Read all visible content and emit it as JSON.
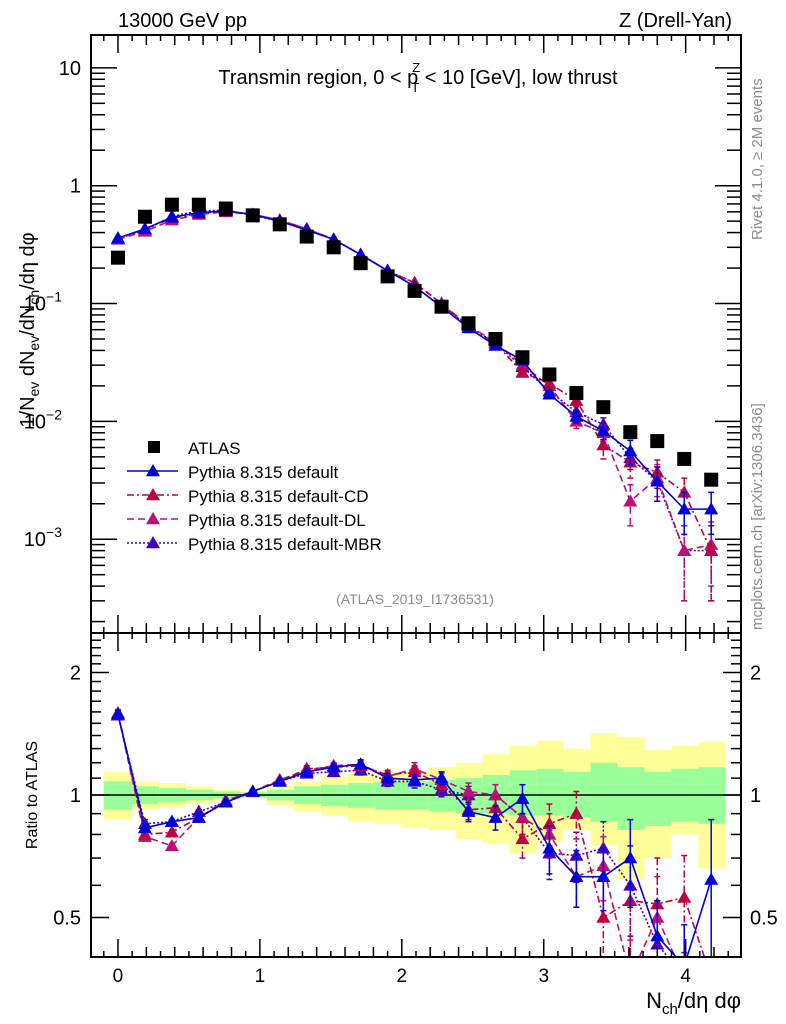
{
  "header": {
    "left": "13000 GeV pp",
    "right": "Z (Drell-Yan)"
  },
  "side_labels": {
    "rivet": "Rivet 4.1.0, ≥ 2M events",
    "mcplots": "mcplots.cern.ch [arXiv:1306.3436]"
  },
  "chart_data": [
    {
      "type": "line",
      "panel": "main",
      "title": "Transmin region, 0 < p_T^Z < 10 [GeV], low thrust",
      "title_parts": {
        "pre": "Transmin region, 0 < p",
        "sup": "Z",
        "sub": "T",
        "post": " < 10 [GeV], low thrust"
      },
      "analysis_tag": "(ATLAS_2019_I1736531)",
      "ylabel": "1/N_ev dN_ev/dN_ch/dη dφ",
      "yscale": "log",
      "ylim": [
        0.00016,
        19
      ],
      "xlim": [
        -0.19,
        4.39
      ],
      "yticks": [
        {
          "value": 10,
          "label": "10"
        },
        {
          "value": 1,
          "label": "1"
        },
        {
          "value": 0.1,
          "label": "10",
          "exp": "−1"
        },
        {
          "value": 0.01,
          "label": "10",
          "exp": "−2"
        },
        {
          "value": 0.001,
          "label": "10",
          "exp": "−3"
        }
      ],
      "legend_position": "lower-left",
      "x": [
        0,
        0.19,
        0.38,
        0.57,
        0.76,
        0.95,
        1.14,
        1.33,
        1.52,
        1.71,
        1.9,
        2.09,
        2.28,
        2.47,
        2.66,
        2.85,
        3.04,
        3.23,
        3.42,
        3.61,
        3.8,
        3.99,
        4.18
      ],
      "series": [
        {
          "name": "ATLAS",
          "style": "data",
          "color": "#000000",
          "values": [
            0.245,
            0.545,
            0.69,
            0.69,
            0.64,
            0.56,
            0.47,
            0.37,
            0.3,
            0.22,
            0.17,
            0.128,
            0.094,
            0.068,
            0.05,
            0.035,
            0.025,
            0.0174,
            0.0132,
            0.0081,
            0.0068,
            0.0048,
            0.0032
          ]
        },
        {
          "name": "Pythia 8.315 default",
          "style": "solid",
          "color": "#0000dd",
          "values": [
            0.36,
            0.43,
            0.54,
            0.59,
            0.61,
            0.57,
            0.5,
            0.42,
            0.35,
            0.26,
            0.19,
            0.14,
            0.094,
            0.062,
            0.044,
            0.033,
            0.017,
            0.011,
            0.0083,
            0.0056,
            0.0031,
            0.0018,
            0.0018
          ],
          "err": [
            0.005,
            0.005,
            0.005,
            0.005,
            0.005,
            0.005,
            0.005,
            0.004,
            0.004,
            0.003,
            0.002,
            0.002,
            0.0015,
            0.001,
            0.0009,
            0.0008,
            0.0014,
            0.0013,
            0.0013,
            0.0013,
            0.001,
            0.0007,
            0.0007
          ]
        },
        {
          "name": "Pythia 8.315 default-CD",
          "style": "dashdot",
          "color": "#bb0044",
          "values": [
            0.355,
            0.43,
            0.53,
            0.58,
            0.61,
            0.57,
            0.51,
            0.43,
            0.35,
            0.26,
            0.19,
            0.15,
            0.1,
            0.063,
            0.046,
            0.026,
            0.021,
            0.015,
            0.0063,
            0.0045,
            0.0037,
            0.0025,
            0.0008
          ],
          "err": [
            0.005,
            0.005,
            0.005,
            0.005,
            0.005,
            0.005,
            0.005,
            0.004,
            0.004,
            0.003,
            0.002,
            0.002,
            0.0015,
            0.001,
            0.001,
            0.001,
            0.0015,
            0.0015,
            0.0015,
            0.0012,
            0.001,
            0.0008,
            0.0005
          ]
        },
        {
          "name": "Pythia 8.315 default-DL",
          "style": "dashed",
          "color": "#bb1177",
          "values": [
            0.35,
            0.41,
            0.51,
            0.57,
            0.6,
            0.57,
            0.51,
            0.43,
            0.35,
            0.26,
            0.19,
            0.15,
            0.1,
            0.065,
            0.047,
            0.03,
            0.02,
            0.01,
            0.008,
            0.0021,
            0.0033,
            0.0008,
            0.0009
          ],
          "err": [
            0.005,
            0.005,
            0.005,
            0.005,
            0.005,
            0.005,
            0.005,
            0.004,
            0.004,
            0.003,
            0.002,
            0.002,
            0.0015,
            0.001,
            0.001,
            0.001,
            0.0015,
            0.0013,
            0.0013,
            0.0008,
            0.001,
            0.0005,
            0.0005
          ]
        },
        {
          "name": "Pythia 8.315 default-MBR",
          "style": "dotted",
          "color": "#4400bb",
          "values": [
            0.355,
            0.42,
            0.55,
            0.61,
            0.62,
            0.56,
            0.5,
            0.43,
            0.35,
            0.26,
            0.19,
            0.14,
            0.093,
            0.065,
            0.046,
            0.029,
            0.018,
            0.012,
            0.0094,
            0.0049,
            0.0031,
            0.0008,
            0.0008
          ],
          "err": [
            0.005,
            0.005,
            0.005,
            0.005,
            0.005,
            0.005,
            0.005,
            0.004,
            0.004,
            0.003,
            0.002,
            0.002,
            0.0015,
            0.001,
            0.001,
            0.001,
            0.0015,
            0.0013,
            0.0013,
            0.001,
            0.001,
            0.0005,
            0.0005
          ]
        }
      ]
    },
    {
      "type": "line",
      "panel": "ratio",
      "ylabel": "Ratio to ATLAS",
      "xlabel": "N_ch/dη dφ",
      "xlabel_parts": {
        "pre": "N",
        "sub": "ch",
        "post": "/dη dφ"
      },
      "yscale": "log",
      "ylim": [
        0.4,
        2.5
      ],
      "xlim": [
        -0.19,
        4.39
      ],
      "yticks": [
        {
          "value": 2,
          "label": "2"
        },
        {
          "value": 1,
          "label": "1"
        },
        {
          "value": 0.5,
          "label": "0.5"
        }
      ],
      "xticks": [
        {
          "value": 0,
          "label": "0"
        },
        {
          "value": 1,
          "label": "1"
        },
        {
          "value": 2,
          "label": "2"
        },
        {
          "value": 3,
          "label": "3"
        },
        {
          "value": 4,
          "label": "4"
        }
      ],
      "bands": {
        "inner_color": "#99ff99",
        "outer_color": "#ffff99",
        "x_edges": [
          -0.1,
          0.1,
          0.29,
          0.48,
          0.67,
          0.86,
          1.05,
          1.24,
          1.43,
          1.62,
          1.81,
          2.0,
          2.19,
          2.38,
          2.57,
          2.76,
          2.95,
          3.14,
          3.33,
          3.52,
          3.71,
          3.9,
          4.09,
          4.28
        ],
        "inner_lo": [
          0.92,
          0.95,
          0.96,
          0.97,
          0.98,
          0.985,
          0.97,
          0.95,
          0.94,
          0.93,
          0.92,
          0.92,
          0.91,
          0.9,
          0.9,
          0.89,
          0.89,
          0.88,
          0.86,
          0.82,
          0.84,
          0.86,
          0.85
        ],
        "inner_hi": [
          1.08,
          1.05,
          1.04,
          1.03,
          1.02,
          1.015,
          1.03,
          1.05,
          1.06,
          1.07,
          1.08,
          1.08,
          1.09,
          1.1,
          1.12,
          1.15,
          1.16,
          1.14,
          1.2,
          1.17,
          1.14,
          1.16,
          1.17
        ],
        "outer_lo": [
          0.87,
          0.92,
          0.93,
          0.95,
          0.97,
          0.98,
          0.94,
          0.91,
          0.89,
          0.86,
          0.85,
          0.83,
          0.82,
          0.78,
          0.76,
          0.72,
          0.77,
          0.82,
          0.75,
          0.62,
          0.7,
          0.8,
          0.66
        ],
        "outer_hi": [
          1.14,
          1.08,
          1.07,
          1.05,
          1.03,
          1.02,
          1.06,
          1.08,
          1.11,
          1.13,
          1.14,
          1.14,
          1.17,
          1.2,
          1.26,
          1.32,
          1.36,
          1.3,
          1.42,
          1.39,
          1.29,
          1.32,
          1.35
        ]
      },
      "x": [
        0,
        0.19,
        0.38,
        0.57,
        0.76,
        0.95,
        1.14,
        1.33,
        1.52,
        1.71,
        1.9,
        2.09,
        2.28,
        2.47,
        2.66,
        2.85,
        3.04,
        3.23,
        3.42,
        3.61,
        3.8,
        3.99,
        4.18
      ],
      "series": [
        {
          "name": "Pythia 8.315 default",
          "style": "solid",
          "color": "#0000dd",
          "values": [
            1.58,
            0.83,
            0.86,
            0.88,
            0.96,
            1.02,
            1.08,
            1.14,
            1.17,
            1.19,
            1.1,
            1.09,
            1.1,
            0.91,
            0.88,
            0.98,
            0.74,
            0.63,
            0.63,
            0.7,
            0.45,
            0.38,
            0.62
          ],
          "err": [
            0.03,
            0.02,
            0.01,
            0.01,
            0.01,
            0.01,
            0.01,
            0.01,
            0.02,
            0.03,
            0.03,
            0.03,
            0.04,
            0.05,
            0.06,
            0.08,
            0.1,
            0.1,
            0.11,
            0.17,
            0.1,
            0.1,
            0.25
          ]
        },
        {
          "name": "Pythia 8.315 default-CD",
          "style": "dashdot",
          "color": "#bb0044",
          "values": [
            1.59,
            0.8,
            0.81,
            0.88,
            0.96,
            1.02,
            1.08,
            1.16,
            1.17,
            1.18,
            1.12,
            1.14,
            1.06,
            0.92,
            0.93,
            0.78,
            0.85,
            0.9,
            0.5,
            0.55,
            0.54,
            0.56,
            0.28
          ],
          "err": [
            0.03,
            0.02,
            0.01,
            0.01,
            0.01,
            0.01,
            0.01,
            0.02,
            0.02,
            0.03,
            0.03,
            0.04,
            0.04,
            0.05,
            0.06,
            0.08,
            0.1,
            0.12,
            0.15,
            0.15,
            0.16,
            0.15,
            0.1
          ]
        },
        {
          "name": "Pythia 8.315 default-DL",
          "style": "dashed",
          "color": "#bb1177",
          "values": [
            1.58,
            0.79,
            0.75,
            0.88,
            0.97,
            1.02,
            1.09,
            1.15,
            1.18,
            1.19,
            1.11,
            1.16,
            1.09,
            1.02,
            1.0,
            0.88,
            0.8,
            0.63,
            0.67,
            0.34,
            0.5,
            0.23,
            0.27
          ],
          "err": [
            0.03,
            0.02,
            0.01,
            0.01,
            0.01,
            0.01,
            0.01,
            0.02,
            0.02,
            0.03,
            0.03,
            0.04,
            0.04,
            0.05,
            0.06,
            0.08,
            0.1,
            0.1,
            0.12,
            0.1,
            0.13,
            0.1,
            0.1
          ]
        },
        {
          "name": "Pythia 8.315 default-MBR",
          "style": "dotted",
          "color": "#4400bb",
          "values": [
            1.57,
            0.85,
            0.86,
            0.91,
            0.96,
            1.02,
            1.08,
            1.13,
            1.14,
            1.15,
            1.08,
            1.08,
            1.03,
            1.0,
            1.0,
            0.88,
            0.72,
            0.71,
            0.74,
            0.6,
            0.43,
            0.23,
            0.25
          ],
          "err": [
            0.03,
            0.02,
            0.01,
            0.01,
            0.01,
            0.01,
            0.01,
            0.01,
            0.02,
            0.03,
            0.03,
            0.04,
            0.04,
            0.05,
            0.06,
            0.08,
            0.1,
            0.1,
            0.12,
            0.15,
            0.12,
            0.1,
            0.1
          ]
        }
      ]
    }
  ]
}
